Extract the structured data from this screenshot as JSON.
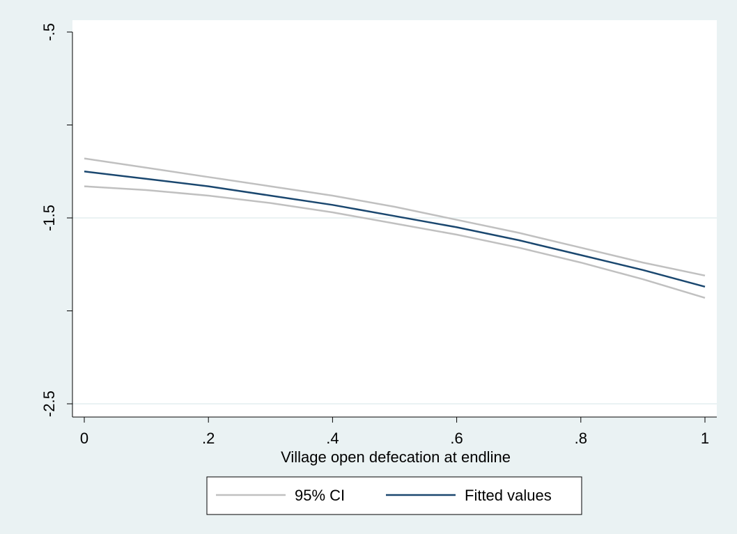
{
  "chart_data": {
    "type": "line",
    "xlabel": "Village open defecation at endline",
    "ylabel": "",
    "xlim": [
      0,
      1
    ],
    "ylim": [
      -2.5,
      -0.5
    ],
    "x_ticks": [
      {
        "value": 0,
        "label": "0"
      },
      {
        "value": 0.2,
        "label": ".2"
      },
      {
        "value": 0.4,
        "label": ".4"
      },
      {
        "value": 0.6,
        "label": ".6"
      },
      {
        "value": 0.8,
        "label": ".8"
      },
      {
        "value": 1,
        "label": "1"
      }
    ],
    "y_ticks": [
      {
        "value": -0.5,
        "label": "-.5"
      },
      {
        "value": -1,
        "label": ""
      },
      {
        "value": -1.5,
        "label": "-1.5"
      },
      {
        "value": -2,
        "label": ""
      },
      {
        "value": -2.5,
        "label": "-2.5"
      }
    ],
    "grid_y": [
      -1.5,
      -2.5
    ],
    "x": [
      0,
      0.1,
      0.2,
      0.3,
      0.4,
      0.5,
      0.6,
      0.7,
      0.8,
      0.9,
      1.0
    ],
    "series": [
      {
        "name": "95% CI",
        "role": "ci_upper",
        "color": "#c0c0c0",
        "values": [
          -1.18,
          -1.23,
          -1.28,
          -1.33,
          -1.38,
          -1.44,
          -1.51,
          -1.58,
          -1.66,
          -1.74,
          -1.81
        ]
      },
      {
        "name": "95% CI",
        "role": "ci_lower",
        "color": "#c0c0c0",
        "values": [
          -1.33,
          -1.35,
          -1.38,
          -1.42,
          -1.47,
          -1.53,
          -1.59,
          -1.66,
          -1.74,
          -1.83,
          -1.93
        ]
      },
      {
        "name": "Fitted values",
        "role": "fit",
        "color": "#1a476f",
        "values": [
          -1.25,
          -1.29,
          -1.33,
          -1.38,
          -1.43,
          -1.49,
          -1.55,
          -1.62,
          -1.7,
          -1.78,
          -1.87
        ]
      }
    ],
    "legend": {
      "placement": "bottom",
      "entries": [
        {
          "label": "95% CI",
          "color": "#c0c0c0"
        },
        {
          "label": "Fitted values",
          "color": "#1a476f"
        }
      ]
    },
    "colors": {
      "background": "#eaf2f3",
      "plot_area": "#ffffff",
      "grid": "#eaf2f3",
      "axis": "#000000"
    }
  }
}
